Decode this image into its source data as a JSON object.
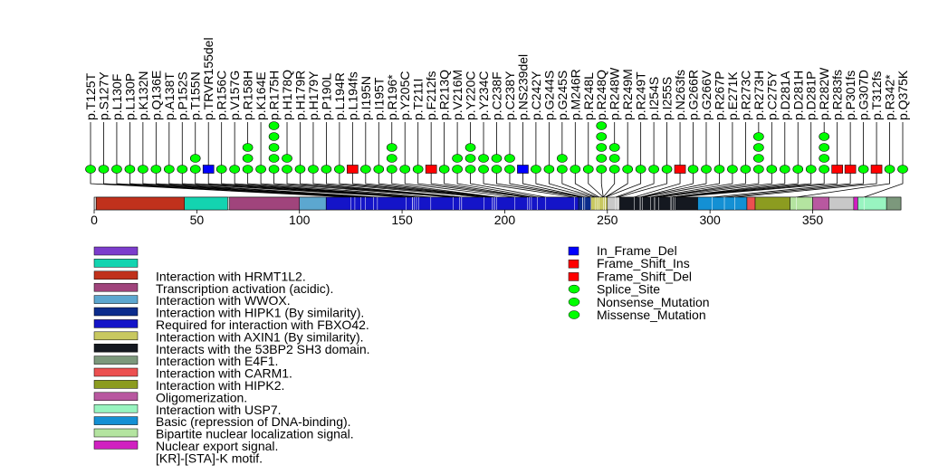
{
  "chart_data": {
    "type": "lollipop",
    "protein_length": 393,
    "axis": {
      "xlim": [
        0,
        393
      ],
      "ticks": [
        0,
        50,
        100,
        150,
        200,
        250,
        300,
        350
      ]
    },
    "mutation_types": {
      "In_Frame_Del": "#0000ff",
      "Frame_Shift_Ins": "#ff0000",
      "Frame_Shift_Del": "#ff0000",
      "Splice_Site": "#00ff00",
      "Nonsense_Mutation": "#00ff00",
      "Missense_Mutation": "#00ff00"
    },
    "mutations": [
      {
        "label": "p.T125T",
        "pos": 125,
        "count": 1,
        "type": "Splice_Site"
      },
      {
        "label": "p.S127Y",
        "pos": 127,
        "count": 1,
        "type": "Missense_Mutation"
      },
      {
        "label": "p.L130F",
        "pos": 130,
        "count": 1,
        "type": "Missense_Mutation"
      },
      {
        "label": "p.L130P",
        "pos": 130,
        "count": 1,
        "type": "Missense_Mutation"
      },
      {
        "label": "p.K132N",
        "pos": 132,
        "count": 1,
        "type": "Missense_Mutation"
      },
      {
        "label": "p.Q136E",
        "pos": 136,
        "count": 1,
        "type": "Missense_Mutation"
      },
      {
        "label": "p.A138T",
        "pos": 138,
        "count": 1,
        "type": "Missense_Mutation"
      },
      {
        "label": "p.P152S",
        "pos": 152,
        "count": 1,
        "type": "Missense_Mutation"
      },
      {
        "label": "p.T155N",
        "pos": 155,
        "count": 2,
        "type": "Missense_Mutation"
      },
      {
        "label": "p.TRVR155del",
        "pos": 155,
        "count": 1,
        "type": "In_Frame_Del"
      },
      {
        "label": "p.R156C",
        "pos": 156,
        "count": 1,
        "type": "Missense_Mutation"
      },
      {
        "label": "p.V157G",
        "pos": 157,
        "count": 1,
        "type": "Missense_Mutation"
      },
      {
        "label": "p.R158H",
        "pos": 158,
        "count": 3,
        "type": "Missense_Mutation"
      },
      {
        "label": "p.K164E",
        "pos": 164,
        "count": 1,
        "type": "Missense_Mutation"
      },
      {
        "label": "p.R175H",
        "pos": 175,
        "count": 5,
        "type": "Missense_Mutation"
      },
      {
        "label": "p.H178Q",
        "pos": 178,
        "count": 2,
        "type": "Missense_Mutation"
      },
      {
        "label": "p.H179R",
        "pos": 179,
        "count": 1,
        "type": "Missense_Mutation"
      },
      {
        "label": "p.H179Y",
        "pos": 179,
        "count": 1,
        "type": "Missense_Mutation"
      },
      {
        "label": "p.P190L",
        "pos": 190,
        "count": 1,
        "type": "Missense_Mutation"
      },
      {
        "label": "p.L194R",
        "pos": 194,
        "count": 1,
        "type": "Missense_Mutation"
      },
      {
        "label": "p.L194fs",
        "pos": 194,
        "count": 1,
        "type": "Frame_Shift_Del"
      },
      {
        "label": "p.I195N",
        "pos": 195,
        "count": 1,
        "type": "Missense_Mutation"
      },
      {
        "label": "p.I195T",
        "pos": 195,
        "count": 1,
        "type": "Missense_Mutation"
      },
      {
        "label": "p.R196*",
        "pos": 196,
        "count": 3,
        "type": "Nonsense_Mutation"
      },
      {
        "label": "p.Y205C",
        "pos": 205,
        "count": 1,
        "type": "Missense_Mutation"
      },
      {
        "label": "p.T211I",
        "pos": 211,
        "count": 1,
        "type": "Missense_Mutation"
      },
      {
        "label": "p.F212fs",
        "pos": 212,
        "count": 1,
        "type": "Frame_Shift_Ins"
      },
      {
        "label": "p.R213Q",
        "pos": 213,
        "count": 1,
        "type": "Missense_Mutation"
      },
      {
        "label": "p.V216M",
        "pos": 216,
        "count": 2,
        "type": "Missense_Mutation"
      },
      {
        "label": "p.Y220C",
        "pos": 220,
        "count": 3,
        "type": "Missense_Mutation"
      },
      {
        "label": "p.Y234C",
        "pos": 234,
        "count": 2,
        "type": "Missense_Mutation"
      },
      {
        "label": "p.C238F",
        "pos": 238,
        "count": 2,
        "type": "Missense_Mutation"
      },
      {
        "label": "p.C238Y",
        "pos": 238,
        "count": 2,
        "type": "Missense_Mutation"
      },
      {
        "label": "p.NS239del",
        "pos": 239,
        "count": 1,
        "type": "In_Frame_Del"
      },
      {
        "label": "p.C242Y",
        "pos": 242,
        "count": 1,
        "type": "Missense_Mutation"
      },
      {
        "label": "p.G244S",
        "pos": 244,
        "count": 1,
        "type": "Missense_Mutation"
      },
      {
        "label": "p.G245S",
        "pos": 245,
        "count": 2,
        "type": "Missense_Mutation"
      },
      {
        "label": "p.M246R",
        "pos": 246,
        "count": 1,
        "type": "Missense_Mutation"
      },
      {
        "label": "p.R248L",
        "pos": 248,
        "count": 1,
        "type": "Missense_Mutation"
      },
      {
        "label": "p.R248Q",
        "pos": 248,
        "count": 5,
        "type": "Missense_Mutation"
      },
      {
        "label": "p.R248W",
        "pos": 248,
        "count": 3,
        "type": "Missense_Mutation"
      },
      {
        "label": "p.R249M",
        "pos": 249,
        "count": 1,
        "type": "Missense_Mutation"
      },
      {
        "label": "p.R249T",
        "pos": 249,
        "count": 1,
        "type": "Missense_Mutation"
      },
      {
        "label": "p.I254S",
        "pos": 254,
        "count": 1,
        "type": "Missense_Mutation"
      },
      {
        "label": "p.I255S",
        "pos": 255,
        "count": 1,
        "type": "Missense_Mutation"
      },
      {
        "label": "p.N263fs",
        "pos": 263,
        "count": 1,
        "type": "Frame_Shift_Del"
      },
      {
        "label": "p.G266R",
        "pos": 266,
        "count": 1,
        "type": "Missense_Mutation"
      },
      {
        "label": "p.G266V",
        "pos": 266,
        "count": 1,
        "type": "Missense_Mutation"
      },
      {
        "label": "p.R267P",
        "pos": 267,
        "count": 1,
        "type": "Missense_Mutation"
      },
      {
        "label": "p.E271K",
        "pos": 271,
        "count": 1,
        "type": "Missense_Mutation"
      },
      {
        "label": "p.R273C",
        "pos": 273,
        "count": 1,
        "type": "Missense_Mutation"
      },
      {
        "label": "p.R273H",
        "pos": 273,
        "count": 4,
        "type": "Missense_Mutation"
      },
      {
        "label": "p.C275Y",
        "pos": 275,
        "count": 1,
        "type": "Missense_Mutation"
      },
      {
        "label": "p.D281A",
        "pos": 281,
        "count": 1,
        "type": "Missense_Mutation"
      },
      {
        "label": "p.D281H",
        "pos": 281,
        "count": 1,
        "type": "Missense_Mutation"
      },
      {
        "label": "p.D281P",
        "pos": 281,
        "count": 1,
        "type": "Missense_Mutation"
      },
      {
        "label": "p.R282W",
        "pos": 282,
        "count": 4,
        "type": "Missense_Mutation"
      },
      {
        "label": "p.R283fs",
        "pos": 283,
        "count": 1,
        "type": "Frame_Shift_Del"
      },
      {
        "label": "p.P301fs",
        "pos": 301,
        "count": 1,
        "type": "Frame_Shift_Del"
      },
      {
        "label": "p.G307D",
        "pos": 307,
        "count": 1,
        "type": "Missense_Mutation"
      },
      {
        "label": "p.T312fs",
        "pos": 312,
        "count": 1,
        "type": "Frame_Shift_Del"
      },
      {
        "label": "p.R342*",
        "pos": 342,
        "count": 1,
        "type": "Nonsense_Mutation"
      },
      {
        "label": "p.Q375K",
        "pos": 375,
        "count": 1,
        "type": "Missense_Mutation"
      }
    ],
    "domains": [
      {
        "name": "Transcription activation (acidic).",
        "start": 1,
        "end": 44,
        "color": "#c0311c"
      },
      {
        "name": "Interaction with HRMT1L2.",
        "start": 44,
        "end": 65,
        "color": "#13d4b0"
      },
      {
        "name": "Interaction with WWOX.",
        "start": 66,
        "end": 110,
        "color": "#a0447c"
      },
      {
        "name": "Interaction with HIPK1 (By similarity).",
        "start": 100,
        "end": 113,
        "color": "#5ca7d0"
      },
      {
        "name": "Interaction with AXIN1 (By similarity).",
        "start": 113,
        "end": 236,
        "color": "#1414c8"
      },
      {
        "name": "Required for interaction with FBXO42.",
        "start": 236,
        "end": 242,
        "color": "#0c2c8c"
      },
      {
        "name": "Interacts with the 53BP2 SH3 domain.",
        "start": 242,
        "end": 250,
        "color": "#c8c860"
      },
      {
        "name": "Interaction with E4F1.",
        "start": 256,
        "end": 294,
        "color": "#141820"
      },
      {
        "name": "Bipartite nuclear localization signal.",
        "start": 294,
        "end": 318,
        "color": "#1490d4"
      },
      {
        "name": "Interaction with HIPK2.",
        "start": 318,
        "end": 322,
        "color": "#ec5050"
      },
      {
        "name": "Oligomerization.",
        "start": 322,
        "end": 339,
        "color": "#8c9c20"
      },
      {
        "name": "Nuclear export signal.",
        "start": 339,
        "end": 350,
        "color": "#b4e4a0"
      },
      {
        "name": "Interaction with USP7.",
        "start": 350,
        "end": 358,
        "color": "#b858a0"
      },
      {
        "name": "[KR]-[STA]-K motif.",
        "start": 370,
        "end": 372,
        "color": "#d020c0"
      },
      {
        "name": "Basic (repression of DNA-binding).",
        "start": 372,
        "end": 386,
        "color": "#98f4c0"
      },
      {
        "name": "Interaction with CARM1.",
        "start": 386,
        "end": 393,
        "color": "#7c987c"
      }
    ],
    "legend_domains": [
      {
        "text": "",
        "color": "#7c3ccc"
      },
      {
        "text": "Interaction with HRMT1L2.",
        "color": "#13d4b0"
      },
      {
        "text": "Transcription activation (acidic).",
        "color": "#c0311c"
      },
      {
        "text": "Interaction with WWOX.",
        "color": "#a0447c"
      },
      {
        "text": "Interaction with HIPK1 (By similarity).",
        "color": "#5ca7d0"
      },
      {
        "text": "Required for interaction with FBXO42.",
        "color": "#0c2c8c"
      },
      {
        "text": "Interaction with AXIN1 (By similarity).",
        "color": "#1414c8"
      },
      {
        "text": "Interacts with the 53BP2 SH3 domain.",
        "color": "#c8c860"
      },
      {
        "text": "Interaction with E4F1.",
        "color": "#141820"
      },
      {
        "text": "Interaction with CARM1.",
        "color": "#7c987c"
      },
      {
        "text": "Interaction with HIPK2.",
        "color": "#ec5050"
      },
      {
        "text": "Oligomerization.",
        "color": "#8c9c20"
      },
      {
        "text": "Interaction with USP7.",
        "color": "#b858a0"
      },
      {
        "text": "Basic (repression of DNA-binding).",
        "color": "#98f4c0"
      },
      {
        "text": "Bipartite nuclear localization signal.",
        "color": "#1490d4"
      },
      {
        "text": "Nuclear export signal.",
        "color": "#b4e4a0"
      },
      {
        "text": "[KR]-[STA]-K motif.",
        "color": "#d020c0"
      }
    ],
    "legend_mutations": [
      {
        "text": "In_Frame_Del",
        "shape": "square",
        "color": "#0000ff"
      },
      {
        "text": "Frame_Shift_Ins",
        "shape": "square",
        "color": "#ff0000"
      },
      {
        "text": "Frame_Shift_Del",
        "shape": "square",
        "color": "#ff0000"
      },
      {
        "text": "Splice_Site",
        "shape": "circle",
        "color": "#00ff00"
      },
      {
        "text": "Nonsense_Mutation",
        "shape": "circle",
        "color": "#00ff00"
      },
      {
        "text": "Missense_Mutation",
        "shape": "circle",
        "color": "#00ff00"
      }
    ]
  }
}
